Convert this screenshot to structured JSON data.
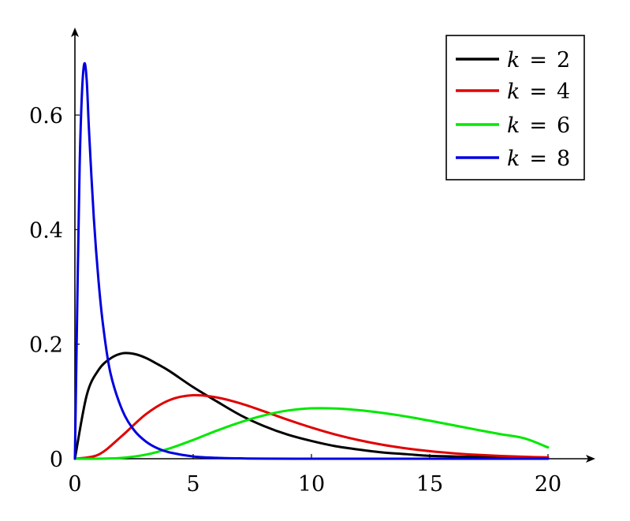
{
  "chart_data": {
    "type": "line",
    "title": "",
    "xlabel": "",
    "ylabel": "",
    "xlim": [
      0,
      20
    ],
    "ylim": [
      0,
      0.75
    ],
    "x_ticks": [
      0,
      5,
      10,
      15,
      20
    ],
    "x_tick_labels": [
      "0",
      "5",
      "10",
      "15",
      "20"
    ],
    "y_ticks": [
      0,
      0.2,
      0.4,
      0.6
    ],
    "y_tick_labels": [
      "0",
      "0.2",
      "0.4",
      "0.6"
    ],
    "grid": false,
    "legend_placement": "top-right",
    "series": [
      {
        "name": "k = 2",
        "legend_var": "k",
        "legend_op": "=",
        "legend_val": "2",
        "color": "#000000",
        "x": [
          0,
          0.5,
          1,
          1.5,
          2,
          2.5,
          3,
          3.5,
          4,
          5,
          6,
          7,
          8,
          9,
          10,
          11,
          12,
          13,
          14,
          15,
          16,
          17,
          18,
          19,
          20
        ],
        "y": [
          0,
          0.111,
          0.155,
          0.175,
          0.184,
          0.183,
          0.176,
          0.165,
          0.153,
          0.125,
          0.1,
          0.076,
          0.057,
          0.042,
          0.031,
          0.022,
          0.016,
          0.011,
          0.008,
          0.005,
          0.004,
          0.003,
          0.002,
          0.001,
          0.001
        ]
      },
      {
        "name": "k = 4",
        "legend_var": "k",
        "legend_op": "=",
        "legend_val": "4",
        "color": "#e00000",
        "x": [
          0,
          1,
          2,
          3,
          4,
          5,
          6,
          7,
          8,
          9,
          10,
          11,
          12,
          13,
          14,
          15,
          16,
          17,
          18,
          19,
          20
        ],
        "y": [
          0,
          0.0072,
          0.0403,
          0.0777,
          0.1024,
          0.1109,
          0.107,
          0.0966,
          0.0827,
          0.068,
          0.0544,
          0.0424,
          0.0325,
          0.0244,
          0.0181,
          0.0132,
          0.0095,
          0.0068,
          0.0048,
          0.0034,
          0.0024
        ]
      },
      {
        "name": "k = 6",
        "legend_var": "k",
        "legend_op": "=",
        "legend_val": "6",
        "color": "#00e800",
        "x": [
          0,
          1,
          2,
          3,
          4,
          5,
          6,
          7,
          8,
          9,
          10,
          11,
          12,
          13,
          14,
          15,
          16,
          17,
          18,
          19,
          20
        ],
        "y": [
          0,
          0.0001,
          0.0015,
          0.0071,
          0.018,
          0.0328,
          0.0491,
          0.0638,
          0.0758,
          0.0842,
          0.088,
          0.0878,
          0.0848,
          0.08,
          0.0738,
          0.0664,
          0.0585,
          0.0505,
          0.0428,
          0.0357,
          0.0198
        ]
      },
      {
        "name": "k = 8",
        "legend_var": "k",
        "legend_op": "=",
        "legend_val": "8",
        "color": "#0000e0",
        "x": [
          0,
          0.1,
          0.2,
          0.3,
          0.4,
          0.5,
          0.6,
          0.8,
          1,
          1.2,
          1.5,
          2,
          2.5,
          3,
          3.5,
          4,
          5,
          6,
          7,
          8,
          10,
          12,
          15,
          20
        ],
        "y": [
          0,
          0.27,
          0.51,
          0.64,
          0.69,
          0.66,
          0.57,
          0.42,
          0.31,
          0.23,
          0.15,
          0.085,
          0.05,
          0.03,
          0.018,
          0.011,
          0.004,
          0.0015,
          0.0006,
          0.0002,
          0,
          0,
          0,
          0
        ]
      }
    ]
  }
}
